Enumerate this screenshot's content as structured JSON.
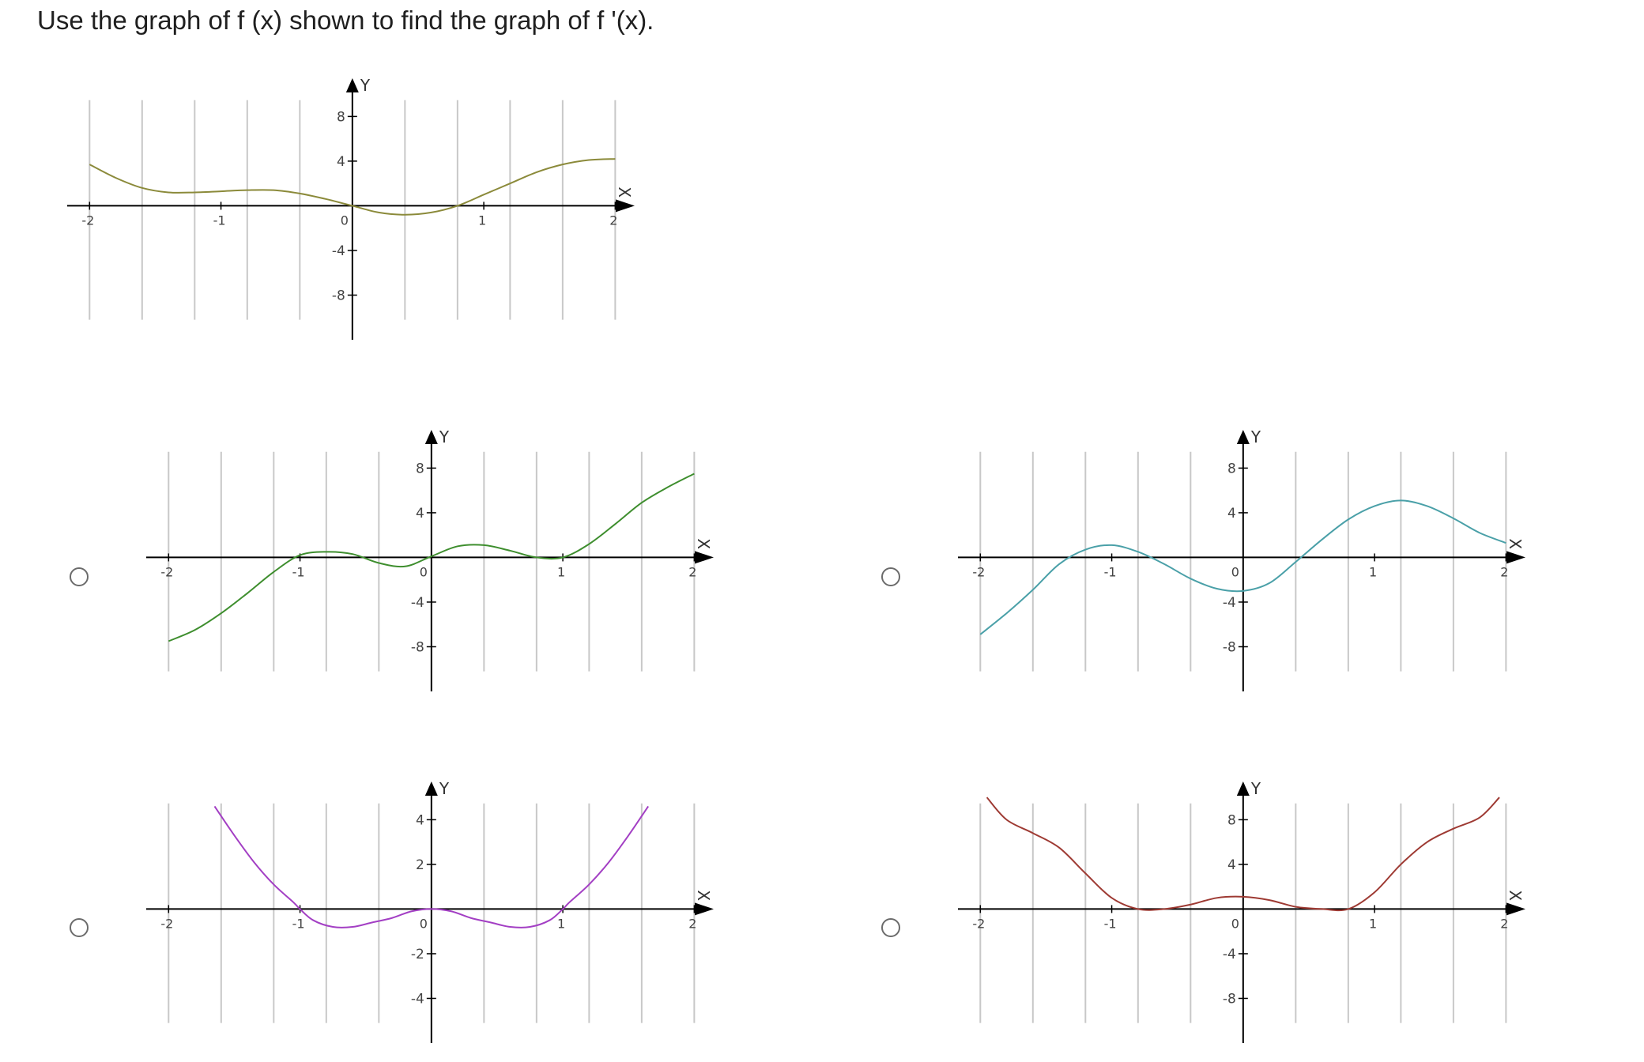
{
  "question": "Use the graph of f (x) shown to find the graph of f '(x).",
  "chart_data": [
    {
      "type": "line",
      "id": "given",
      "xlim": [
        -2.08,
        2.1
      ],
      "ylim": [
        -12,
        11
      ],
      "xticks": [
        -2,
        -1,
        0,
        1,
        2
      ],
      "xtick_labels": [
        "-2",
        "-1",
        "0",
        "1",
        "2"
      ],
      "yticks": [
        8,
        4,
        -4,
        -8
      ],
      "ytick_labels": [
        "8",
        "4",
        "-4",
        "-8"
      ],
      "grid_x": [
        -2,
        -1.6,
        -1.2,
        -0.8,
        -0.4,
        0.4,
        0.8,
        1.2,
        1.6,
        2.0
      ],
      "xlabel": "X",
      "ylabel": "Y",
      "color": "#8b8a3a",
      "series": [
        {
          "x": [
            -2.0,
            -1.8,
            -1.6,
            -1.4,
            -1.2,
            -1.0,
            -0.8,
            -0.6,
            -0.4,
            -0.2,
            0.0,
            0.2,
            0.4,
            0.6,
            0.8,
            1.0,
            1.2,
            1.4,
            1.6,
            1.8,
            2.0
          ],
          "y": [
            3.7,
            2.5,
            1.6,
            1.2,
            1.2,
            1.3,
            1.4,
            1.4,
            1.1,
            0.6,
            0.0,
            -0.6,
            -0.8,
            -0.6,
            0.0,
            1.0,
            2.0,
            3.0,
            3.7,
            4.1,
            4.2
          ]
        }
      ]
    },
    {
      "type": "line",
      "id": "option-a",
      "xlim": [
        -2.08,
        2.1
      ],
      "ylim": [
        -12,
        11
      ],
      "xticks": [
        -2,
        -1,
        0,
        1,
        2
      ],
      "xtick_labels": [
        "-2",
        "-1",
        "0",
        "1",
        "2"
      ],
      "yticks": [
        8,
        4,
        -4,
        -8
      ],
      "ytick_labels": [
        "8",
        "4",
        "-4",
        "-8"
      ],
      "grid_x": [
        -2,
        -1.6,
        -1.2,
        -0.8,
        -0.4,
        0.4,
        0.8,
        1.2,
        1.6,
        2.0
      ],
      "xlabel": "X",
      "ylabel": "Y",
      "color": "#3e8e2e",
      "series": [
        {
          "x": [
            -2.0,
            -1.8,
            -1.6,
            -1.4,
            -1.2,
            -1.0,
            -0.8,
            -0.6,
            -0.4,
            -0.2,
            0.0,
            0.2,
            0.4,
            0.6,
            0.8,
            1.0,
            1.2,
            1.4,
            1.6,
            1.8,
            2.0
          ],
          "y": [
            -7.5,
            -6.5,
            -5.0,
            -3.2,
            -1.3,
            0.2,
            0.5,
            0.3,
            -0.5,
            -0.8,
            0.1,
            1.0,
            1.1,
            0.6,
            0.0,
            0.0,
            1.2,
            3.0,
            4.9,
            6.3,
            7.5
          ]
        }
      ]
    },
    {
      "type": "line",
      "id": "option-b",
      "xlim": [
        -2.08,
        2.1
      ],
      "ylim": [
        -12,
        11
      ],
      "xticks": [
        -2,
        -1,
        0,
        1,
        2
      ],
      "xtick_labels": [
        "-2",
        "-1",
        "0",
        "1",
        "2"
      ],
      "yticks": [
        8,
        4,
        -4,
        -8
      ],
      "ytick_labels": [
        "8",
        "4",
        "-4",
        "-8"
      ],
      "grid_x": [
        -2,
        -1.6,
        -1.2,
        -0.8,
        -0.4,
        0.4,
        0.8,
        1.2,
        1.6,
        2.0
      ],
      "xlabel": "X",
      "ylabel": "Y",
      "color": "#4aa0a8",
      "series": [
        {
          "x": [
            -2.0,
            -1.8,
            -1.6,
            -1.4,
            -1.2,
            -1.0,
            -0.8,
            -0.6,
            -0.4,
            -0.2,
            0.0,
            0.2,
            0.4,
            0.6,
            0.8,
            1.0,
            1.2,
            1.4,
            1.6,
            1.8,
            2.0
          ],
          "y": [
            -6.9,
            -5.0,
            -2.9,
            -0.6,
            0.7,
            1.1,
            0.5,
            -0.6,
            -1.9,
            -2.8,
            -3.0,
            -2.3,
            -0.4,
            1.6,
            3.4,
            4.6,
            5.1,
            4.6,
            3.5,
            2.2,
            1.3
          ]
        }
      ]
    },
    {
      "type": "line",
      "id": "option-c",
      "xlim": [
        -2.08,
        2.1
      ],
      "ylim": [
        -6,
        5.5
      ],
      "xticks": [
        -2,
        -1,
        0,
        1,
        2
      ],
      "xtick_labels": [
        "-2",
        "-1",
        "0",
        "1",
        "2"
      ],
      "yticks": [
        4,
        2,
        -2,
        -4
      ],
      "ytick_labels": [
        "4",
        "2",
        "-2",
        "-4"
      ],
      "grid_x": [
        -2,
        -1.6,
        -1.2,
        -0.8,
        -0.4,
        0.4,
        0.8,
        1.2,
        1.6,
        2.0
      ],
      "xlabel": "X",
      "ylabel": "Y",
      "color": "#a33fc4",
      "series": [
        {
          "x": [
            -1.65,
            -1.5,
            -1.35,
            -1.2,
            -1.05,
            -1.0,
            -0.9,
            -0.75,
            -0.6,
            -0.45,
            -0.3,
            -0.15,
            0.0,
            0.15,
            0.3,
            0.45,
            0.6,
            0.75,
            0.9,
            1.0,
            1.05,
            1.2,
            1.35,
            1.5,
            1.65
          ],
          "y": [
            4.6,
            3.3,
            2.1,
            1.1,
            0.3,
            0.0,
            -0.5,
            -0.8,
            -0.8,
            -0.6,
            -0.4,
            -0.1,
            0.0,
            -0.1,
            -0.4,
            -0.6,
            -0.8,
            -0.8,
            -0.5,
            0.0,
            0.3,
            1.1,
            2.1,
            3.3,
            4.6
          ]
        }
      ]
    },
    {
      "type": "line",
      "id": "option-d",
      "xlim": [
        -2.08,
        2.1
      ],
      "ylim": [
        -12,
        11
      ],
      "xticks": [
        -2,
        -1,
        0,
        1,
        2
      ],
      "xtick_labels": [
        "-2",
        "-1",
        "0",
        "1",
        "2"
      ],
      "yticks": [
        8,
        4,
        -4,
        -8
      ],
      "ytick_labels": [
        "8",
        "4",
        "-4",
        "-8"
      ],
      "grid_x": [
        -2,
        -1.6,
        -1.2,
        -0.8,
        -0.4,
        0.4,
        0.8,
        1.2,
        1.6,
        2.0
      ],
      "xlabel": "X",
      "ylabel": "Y",
      "color": "#9e3a33",
      "series": [
        {
          "x": [
            -1.95,
            -1.8,
            -1.6,
            -1.4,
            -1.2,
            -1.0,
            -0.8,
            -0.6,
            -0.4,
            -0.2,
            0.0,
            0.2,
            0.4,
            0.6,
            0.8,
            1.0,
            1.2,
            1.4,
            1.6,
            1.8,
            1.95
          ],
          "y": [
            10.0,
            8.0,
            6.8,
            5.5,
            3.2,
            1.0,
            0.0,
            0.0,
            0.4,
            1.0,
            1.1,
            0.8,
            0.2,
            0.0,
            0.0,
            1.5,
            4.0,
            6.0,
            7.2,
            8.2,
            10.0
          ]
        }
      ]
    }
  ]
}
